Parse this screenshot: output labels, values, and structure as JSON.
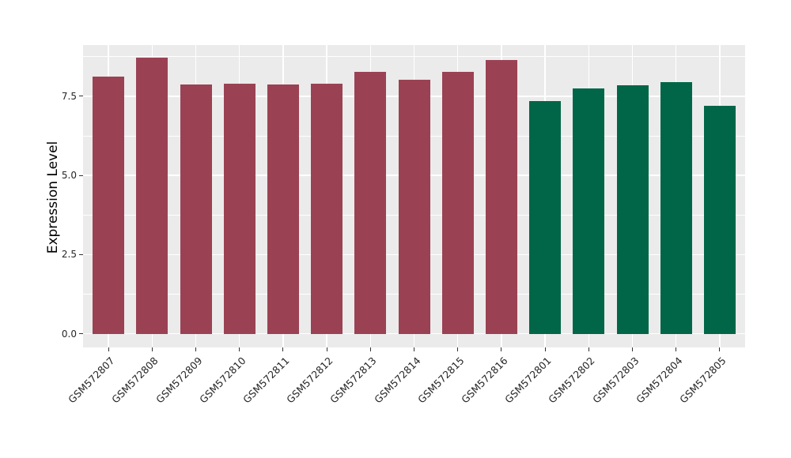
{
  "figure": {
    "background": "#FFFFFF",
    "panel_background": "#EBEBEB",
    "gridline_color": "#FFFFFF",
    "tick_color": "#333333",
    "text_color": "#262626"
  },
  "chart_data": {
    "type": "bar",
    "title": "",
    "xlabel": "",
    "ylabel": "Expression Level",
    "categories": [
      "GSM572807",
      "GSM572808",
      "GSM572809",
      "GSM572810",
      "GSM572811",
      "GSM572812",
      "GSM572813",
      "GSM572814",
      "GSM572815",
      "GSM572816",
      "GSM572801",
      "GSM572802",
      "GSM572803",
      "GSM572804",
      "GSM572805"
    ],
    "values": [
      8.13,
      8.71,
      7.88,
      7.9,
      7.88,
      7.89,
      8.26,
      8.01,
      8.28,
      8.64,
      7.36,
      7.76,
      7.85,
      7.95,
      7.21
    ],
    "bar_groups": [
      "red",
      "red",
      "red",
      "red",
      "red",
      "red",
      "red",
      "red",
      "red",
      "red",
      "green",
      "green",
      "green",
      "green",
      "green"
    ],
    "group_colors": {
      "red": "#9A4253",
      "green": "#006647"
    },
    "yticks": [
      {
        "value": 0.0,
        "label": "0.0"
      },
      {
        "value": 2.5,
        "label": "2.5"
      },
      {
        "value": 5.0,
        "label": "5.0"
      },
      {
        "value": 7.5,
        "label": "7.5"
      }
    ],
    "minor_gridlines": [
      1.25,
      3.75,
      6.25,
      8.75
    ],
    "ylim": [
      -0.44,
      9.15
    ],
    "x_tick_rotation_deg": 45,
    "grid": "white horizontal major+minor, white vertical major at category centers, on grey panel",
    "legend": "none"
  }
}
